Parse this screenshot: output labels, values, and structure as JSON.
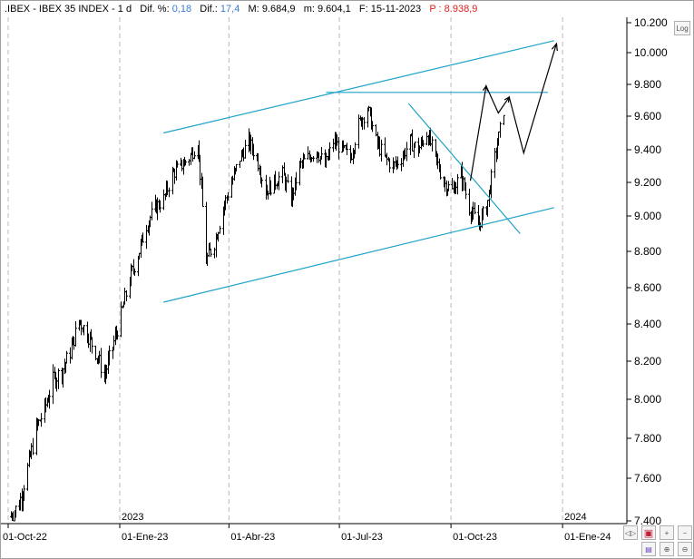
{
  "header": {
    "symbol": ".IBEX",
    "name": "IBEX 35 INDEX",
    "period": "1 d",
    "dif_pct_label": "Dif. %:",
    "dif_pct": "0,18",
    "dif_label": "Dif.:",
    "dif": "17,4",
    "max_label": "M:",
    "max": "9.684,9",
    "min_label": "m:",
    "min": "9.604,1",
    "date_label": "F:",
    "date": "15-11-2023",
    "p_label": "P :",
    "p": "8.938,9"
  },
  "buttons": {
    "log": "Log"
  },
  "colors": {
    "candles": "#000000",
    "channel": "#1fa3c9",
    "projection": "#000000",
    "price_tag": "#e02020",
    "values": "#3a7bd5"
  },
  "chart_data": {
    "type": "bar",
    "title": "",
    "xlabel": "",
    "ylabel": "",
    "ylim": [
      7400,
      10200
    ],
    "yticks": [
      "10.200",
      "10.000",
      "9.800",
      "9.600",
      "9.400",
      "9.200",
      "9.000",
      "8.800",
      "8.600",
      "8.400",
      "8.200",
      "8.000",
      "7.800",
      "7.600",
      "7.400"
    ],
    "yvalues": [
      10200,
      10000,
      9800,
      9600,
      9400,
      9200,
      9000,
      8800,
      8600,
      8400,
      8200,
      8000,
      7800,
      7600,
      7400
    ],
    "xticks": [
      {
        "label": "01-Oct-22",
        "date": "2022-10-01"
      },
      {
        "label": "01-Ene-23",
        "date": "2023-01-01"
      },
      {
        "label": "01-Abr-23",
        "date": "2023-04-01"
      },
      {
        "label": "01-Jul-23",
        "date": "2023-07-01"
      },
      {
        "label": "01-Oct-23",
        "date": "2023-10-01"
      },
      {
        "label": "01-Ene-24",
        "date": "2024-01-01"
      }
    ],
    "year_labels": [
      {
        "label": "2023",
        "date": "2023-01-01"
      },
      {
        "label": "2024",
        "date": "2024-01-01"
      }
    ],
    "grid": "vertical-dashed",
    "price_series": [
      [
        "2022-10-03",
        7420
      ],
      [
        "2022-10-10",
        7480
      ],
      [
        "2022-10-17",
        7650
      ],
      [
        "2022-10-24",
        7850
      ],
      [
        "2022-10-31",
        7950
      ],
      [
        "2022-11-07",
        8100
      ],
      [
        "2022-11-14",
        8150
      ],
      [
        "2022-11-21",
        8250
      ],
      [
        "2022-11-28",
        8420
      ],
      [
        "2022-12-05",
        8350
      ],
      [
        "2022-12-12",
        8250
      ],
      [
        "2022-12-19",
        8120
      ],
      [
        "2022-12-26",
        8280
      ],
      [
        "2023-01-02",
        8450
      ],
      [
        "2023-01-09",
        8650
      ],
      [
        "2023-01-16",
        8780
      ],
      [
        "2023-01-23",
        8950
      ],
      [
        "2023-01-30",
        9050
      ],
      [
        "2023-02-06",
        9100
      ],
      [
        "2023-02-13",
        9250
      ],
      [
        "2023-02-20",
        9300
      ],
      [
        "2023-02-27",
        9350
      ],
      [
        "2023-03-06",
        9450
      ],
      [
        "2023-03-13",
        8750
      ],
      [
        "2023-03-20",
        8850
      ],
      [
        "2023-03-27",
        9050
      ],
      [
        "2023-04-03",
        9200
      ],
      [
        "2023-04-10",
        9350
      ],
      [
        "2023-04-17",
        9450
      ],
      [
        "2023-04-24",
        9350
      ],
      [
        "2023-05-01",
        9150
      ],
      [
        "2023-05-08",
        9200
      ],
      [
        "2023-05-15",
        9250
      ],
      [
        "2023-05-22",
        9100
      ],
      [
        "2023-05-29",
        9300
      ],
      [
        "2023-06-05",
        9350
      ],
      [
        "2023-06-12",
        9400
      ],
      [
        "2023-06-19",
        9300
      ],
      [
        "2023-06-26",
        9450
      ],
      [
        "2023-07-03",
        9400
      ],
      [
        "2023-07-10",
        9350
      ],
      [
        "2023-07-17",
        9550
      ],
      [
        "2023-07-24",
        9650
      ],
      [
        "2023-07-31",
        9450
      ],
      [
        "2023-08-07",
        9350
      ],
      [
        "2023-08-14",
        9300
      ],
      [
        "2023-08-21",
        9350
      ],
      [
        "2023-08-28",
        9450
      ],
      [
        "2023-09-04",
        9400
      ],
      [
        "2023-09-11",
        9500
      ],
      [
        "2023-09-18",
        9350
      ],
      [
        "2023-09-25",
        9200
      ],
      [
        "2023-10-02",
        9150
      ],
      [
        "2023-10-09",
        9250
      ],
      [
        "2023-10-16",
        9050
      ],
      [
        "2023-10-23",
        8950
      ],
      [
        "2023-10-30",
        9050
      ],
      [
        "2023-11-06",
        9350
      ],
      [
        "2023-11-13",
        9640
      ]
    ],
    "drawings": {
      "channel_upper": [
        [
          "2023-02-06",
          9500
        ],
        [
          "2023-12-25",
          10080
        ]
      ],
      "channel_lower": [
        [
          "2023-02-06",
          8520
        ],
        [
          "2023-12-25",
          9050
        ]
      ],
      "resistance": [
        [
          "2023-06-20",
          9750
        ],
        [
          "2023-12-20",
          9750
        ]
      ],
      "trend_down": [
        [
          "2023-08-27",
          9680
        ],
        [
          "2023-11-27",
          8900
        ]
      ],
      "projection": [
        [
          "2023-10-17",
          9210
        ],
        [
          "2023-10-30",
          9790
        ],
        [
          "2023-11-09",
          9620
        ],
        [
          "2023-11-18",
          9720
        ],
        [
          "2023-11-30",
          9380
        ],
        [
          "2023-12-27",
          10060
        ]
      ]
    }
  }
}
